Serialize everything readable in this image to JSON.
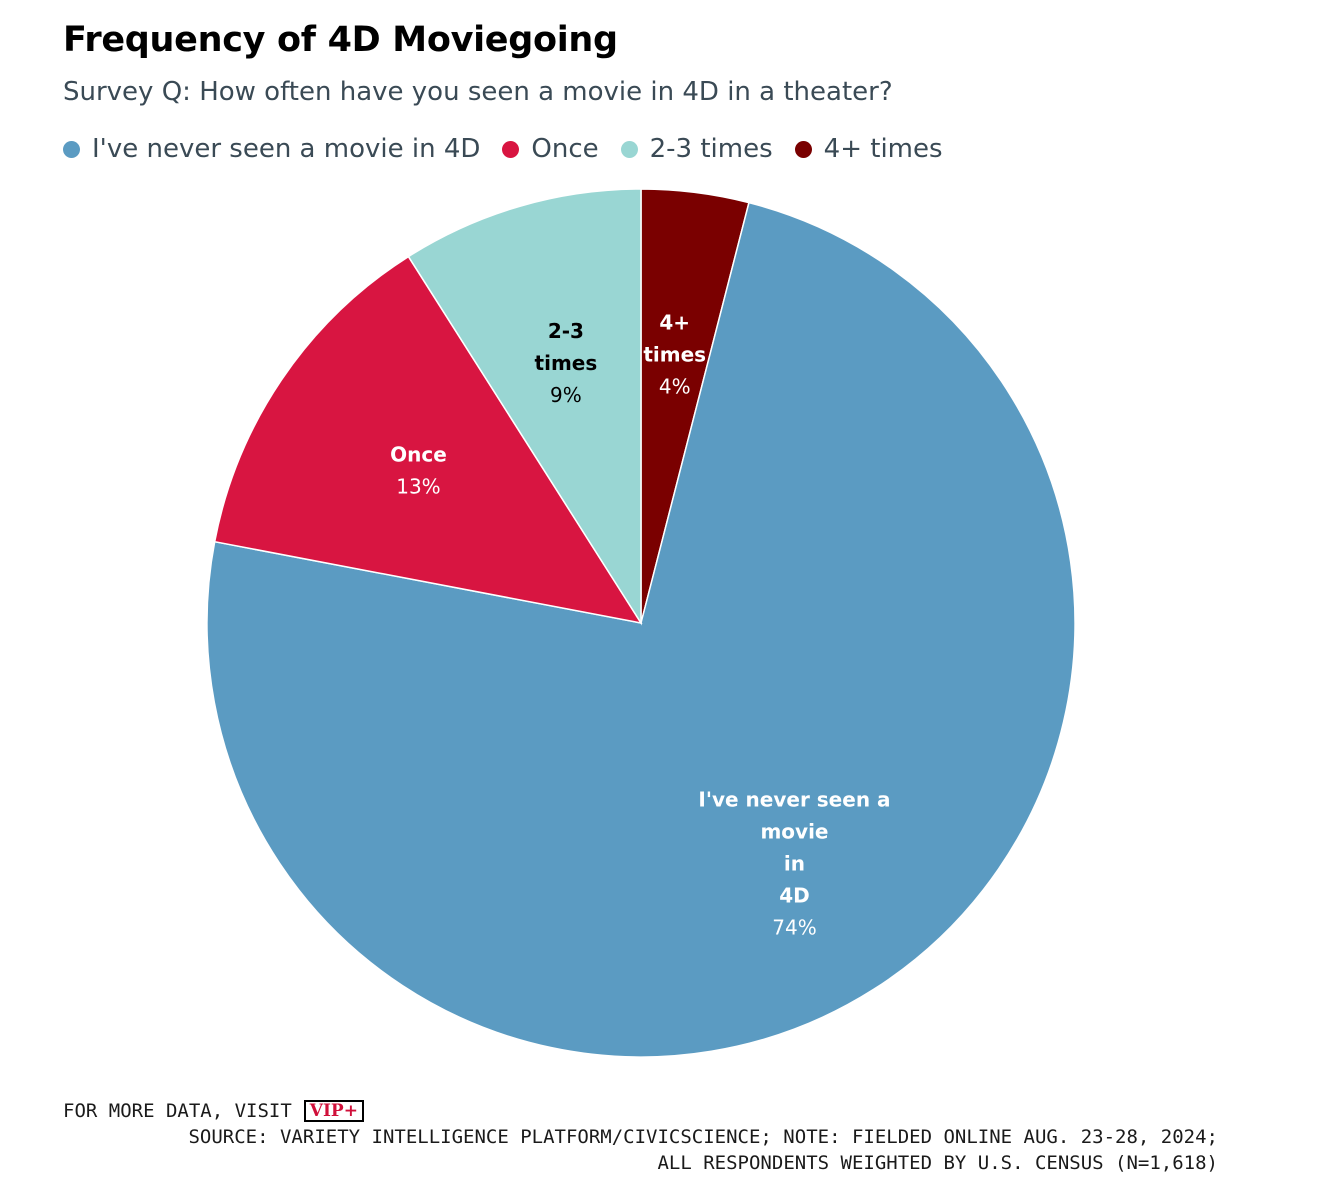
{
  "title": "Frequency of 4D Moviegoing",
  "subtitle": "Survey Q: How often have you seen a movie in 4D in a theater?",
  "footer": {
    "visit": "FOR MORE DATA, VISIT",
    "logo": "VIP+",
    "source_line1": "SOURCE: VARIETY INTELLIGENCE PLATFORM/CIVICSCIENCE; NOTE: FIELDED ONLINE AUG. 23-28, 2024;",
    "source_line2": "ALL RESPONDENTS WEIGHTED BY U.S. CENSUS (N=1,618)"
  },
  "chart_data": {
    "type": "pie",
    "title": "Frequency of 4D Moviegoing",
    "legend_position": "top-left",
    "slices": [
      {
        "name": "4+ times",
        "value": 4,
        "display": "4%",
        "color": "#7a0000",
        "label_lines": [
          "4+",
          "times"
        ],
        "label_color": "#ffffff"
      },
      {
        "name": "I've never seen a movie in 4D",
        "value": 74,
        "display": "74%",
        "color": "#5b9bc2",
        "label_lines": [
          "I've never seen a",
          "movie",
          "in",
          "4D"
        ],
        "label_color": "#ffffff"
      },
      {
        "name": "Once",
        "value": 13,
        "display": "13%",
        "color": "#d81541",
        "label_lines": [
          "Once"
        ],
        "label_color": "#ffffff"
      },
      {
        "name": "2-3 times",
        "value": 9,
        "display": "9%",
        "color": "#99d6d3",
        "label_lines": [
          "2-3",
          "times"
        ],
        "label_color": "#000000"
      }
    ],
    "legend": [
      {
        "label": "I've never seen a movie in 4D",
        "color": "#5b9bc2"
      },
      {
        "label": "Once",
        "color": "#d81541"
      },
      {
        "label": "2-3 times",
        "color": "#99d6d3"
      },
      {
        "label": "4+ times",
        "color": "#7a0000"
      }
    ]
  }
}
